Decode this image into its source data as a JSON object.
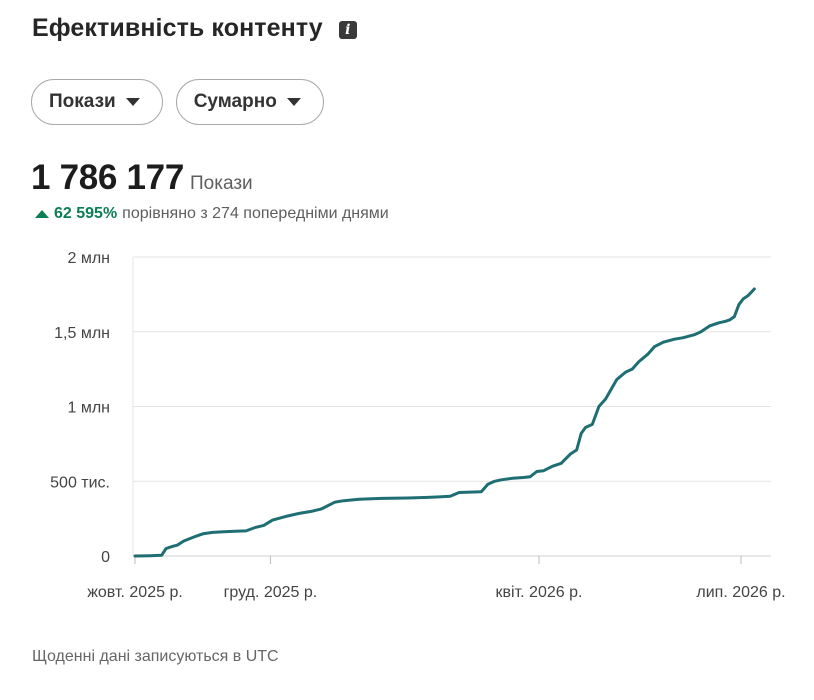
{
  "header": {
    "title": "Ефективність контенту",
    "info_icon": "info-icon"
  },
  "filters": {
    "metric_label": "Покази",
    "mode_label": "Сумарно"
  },
  "summary": {
    "value": "1 786 177",
    "label": "Покази",
    "delta_value": "62 595%",
    "delta_text": "порівняно з 274 попередніми днями",
    "delta_color": "#0a7f53"
  },
  "footer": {
    "note": "Щоденні дані записуються в UTC"
  },
  "chart_data": {
    "type": "line",
    "title": "",
    "xlabel": "",
    "ylabel": "",
    "ylim": [
      0,
      2000000
    ],
    "grid": true,
    "line_color": "#1e6e73",
    "y_ticks": [
      {
        "value": 0,
        "label": "0"
      },
      {
        "value": 500000,
        "label": "500 тис."
      },
      {
        "value": 1000000,
        "label": "1 млн"
      },
      {
        "value": 1500000,
        "label": "1,5 млн"
      },
      {
        "value": 2000000,
        "label": "2 млн"
      }
    ],
    "x_ticks": [
      {
        "date": "2025-10-01",
        "label": "жовт. 2025 р."
      },
      {
        "date": "2025-12-01",
        "label": "груд. 2025 р."
      },
      {
        "date": "2026-04-01",
        "label": "квіт. 2026 р."
      },
      {
        "date": "2026-07-01",
        "label": "лип. 2026 р."
      }
    ],
    "series": [
      {
        "values": [
          [
            "2025-10-01",
            0
          ],
          [
            "2025-10-08",
            2000
          ],
          [
            "2025-10-13",
            5000
          ],
          [
            "2025-10-15",
            50000
          ],
          [
            "2025-10-18",
            65000
          ],
          [
            "2025-10-20",
            72000
          ],
          [
            "2025-10-23",
            100000
          ],
          [
            "2025-10-28",
            130000
          ],
          [
            "2025-11-01",
            150000
          ],
          [
            "2025-11-05",
            158000
          ],
          [
            "2025-11-10",
            162000
          ],
          [
            "2025-11-15",
            165000
          ],
          [
            "2025-11-20",
            168000
          ],
          [
            "2025-11-24",
            190000
          ],
          [
            "2025-11-28",
            205000
          ],
          [
            "2025-12-02",
            240000
          ],
          [
            "2025-12-08",
            265000
          ],
          [
            "2025-12-14",
            285000
          ],
          [
            "2025-12-20",
            300000
          ],
          [
            "2025-12-24",
            315000
          ],
          [
            "2025-12-30",
            360000
          ],
          [
            "2026-01-03",
            370000
          ],
          [
            "2026-01-10",
            380000
          ],
          [
            "2026-01-20",
            385000
          ],
          [
            "2026-02-01",
            388000
          ],
          [
            "2026-02-10",
            392000
          ],
          [
            "2026-02-15",
            395000
          ],
          [
            "2026-02-20",
            400000
          ],
          [
            "2026-02-24",
            425000
          ],
          [
            "2026-03-06",
            430000
          ],
          [
            "2026-03-09",
            480000
          ],
          [
            "2026-03-12",
            500000
          ],
          [
            "2026-03-15",
            510000
          ],
          [
            "2026-03-20",
            520000
          ],
          [
            "2026-03-25",
            525000
          ],
          [
            "2026-03-28",
            530000
          ],
          [
            "2026-03-31",
            565000
          ],
          [
            "2026-04-03",
            570000
          ],
          [
            "2026-04-07",
            600000
          ],
          [
            "2026-04-11",
            620000
          ],
          [
            "2026-04-15",
            680000
          ],
          [
            "2026-04-18",
            710000
          ],
          [
            "2026-04-20",
            820000
          ],
          [
            "2026-04-22",
            860000
          ],
          [
            "2026-04-25",
            880000
          ],
          [
            "2026-04-28",
            1000000
          ],
          [
            "2026-05-01",
            1050000
          ],
          [
            "2026-05-06",
            1180000
          ],
          [
            "2026-05-10",
            1230000
          ],
          [
            "2026-05-13",
            1250000
          ],
          [
            "2026-05-16",
            1300000
          ],
          [
            "2026-05-20",
            1350000
          ],
          [
            "2026-05-23",
            1400000
          ],
          [
            "2026-05-27",
            1430000
          ],
          [
            "2026-06-01",
            1450000
          ],
          [
            "2026-06-05",
            1460000
          ],
          [
            "2026-06-10",
            1480000
          ],
          [
            "2026-06-13",
            1500000
          ],
          [
            "2026-06-17",
            1540000
          ],
          [
            "2026-06-21",
            1560000
          ],
          [
            "2026-06-24",
            1570000
          ],
          [
            "2026-06-26",
            1580000
          ],
          [
            "2026-06-28",
            1600000
          ],
          [
            "2026-06-30",
            1680000
          ],
          [
            "2026-07-02",
            1720000
          ],
          [
            "2026-07-04",
            1740000
          ],
          [
            "2026-07-06",
            1770000
          ],
          [
            "2026-07-07",
            1786177
          ]
        ]
      }
    ]
  }
}
